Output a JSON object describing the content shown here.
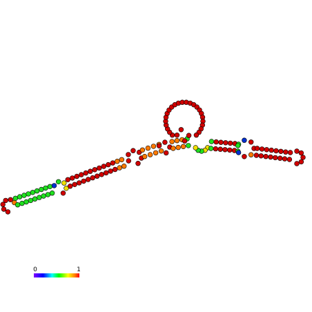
{
  "colorbar": {
    "min_label": "0",
    "max_label": "1"
  }
}
